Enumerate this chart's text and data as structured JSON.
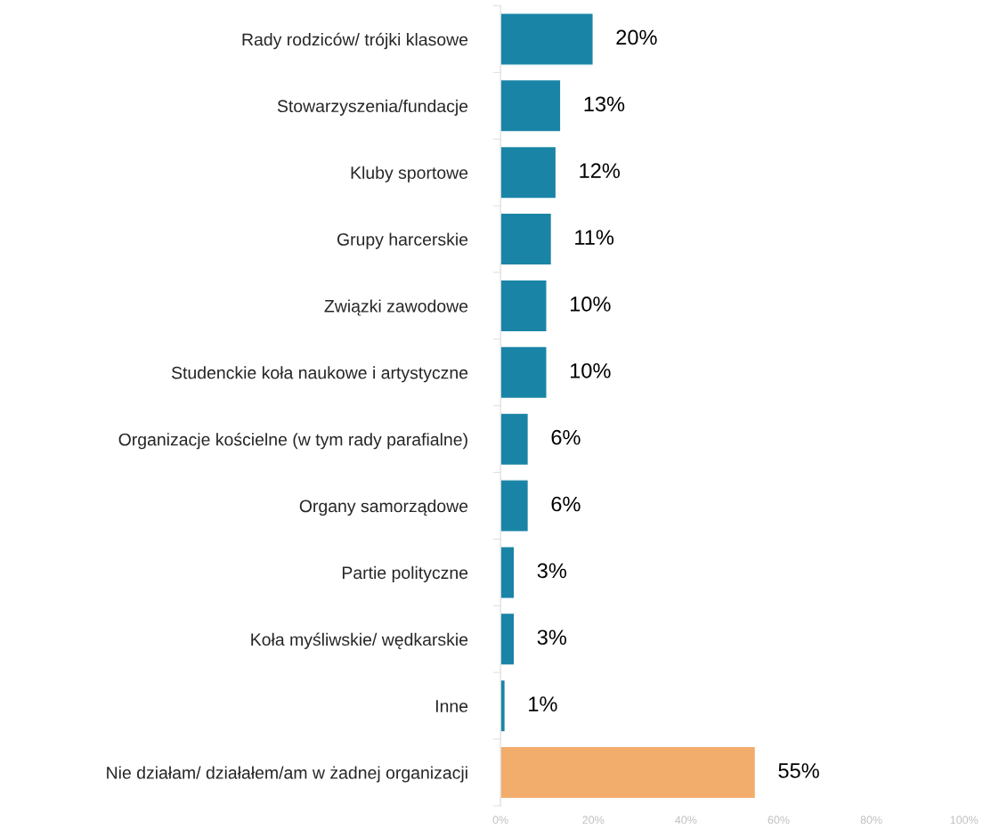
{
  "chart_data": {
    "type": "bar",
    "orientation": "horizontal",
    "categories": [
      "Rady rodziców/ trójki klasowe",
      "Stowarzyszenia/fundacje",
      "Kluby sportowe",
      "Grupy harcerskie",
      "Związki zawodowe",
      "Studenckie koła naukowe i artystyczne",
      "Organizacje kościelne (w tym rady parafialne)",
      "Organy samorządowe",
      "Partie polityczne",
      "Koła myśliwskie/ wędkarskie",
      "Inne",
      "Nie działam/ działałem/am w żadnej organizacji"
    ],
    "values": [
      20,
      13,
      12,
      11,
      10,
      10,
      6,
      6,
      3,
      3,
      1,
      55
    ],
    "colors": [
      "#1a84a6",
      "#1a84a6",
      "#1a84a6",
      "#1a84a6",
      "#1a84a6",
      "#1a84a6",
      "#1a84a6",
      "#1a84a6",
      "#1a84a6",
      "#1a84a6",
      "#1a84a6",
      "#f2ac6b"
    ],
    "value_labels": [
      "20%",
      "13%",
      "12%",
      "11%",
      "10%",
      "10%",
      "6%",
      "6%",
      "3%",
      "3%",
      "1%",
      "55%"
    ],
    "xlim": [
      0,
      100
    ],
    "xticks": [
      {
        "value": 0,
        "label": "0%"
      },
      {
        "value": 20,
        "label": "20%"
      },
      {
        "value": 40,
        "label": "40%"
      },
      {
        "value": 60,
        "label": "60%"
      },
      {
        "value": 80,
        "label": "80%"
      },
      {
        "value": 100,
        "label": "100%"
      }
    ],
    "grid": false,
    "legend": false
  }
}
